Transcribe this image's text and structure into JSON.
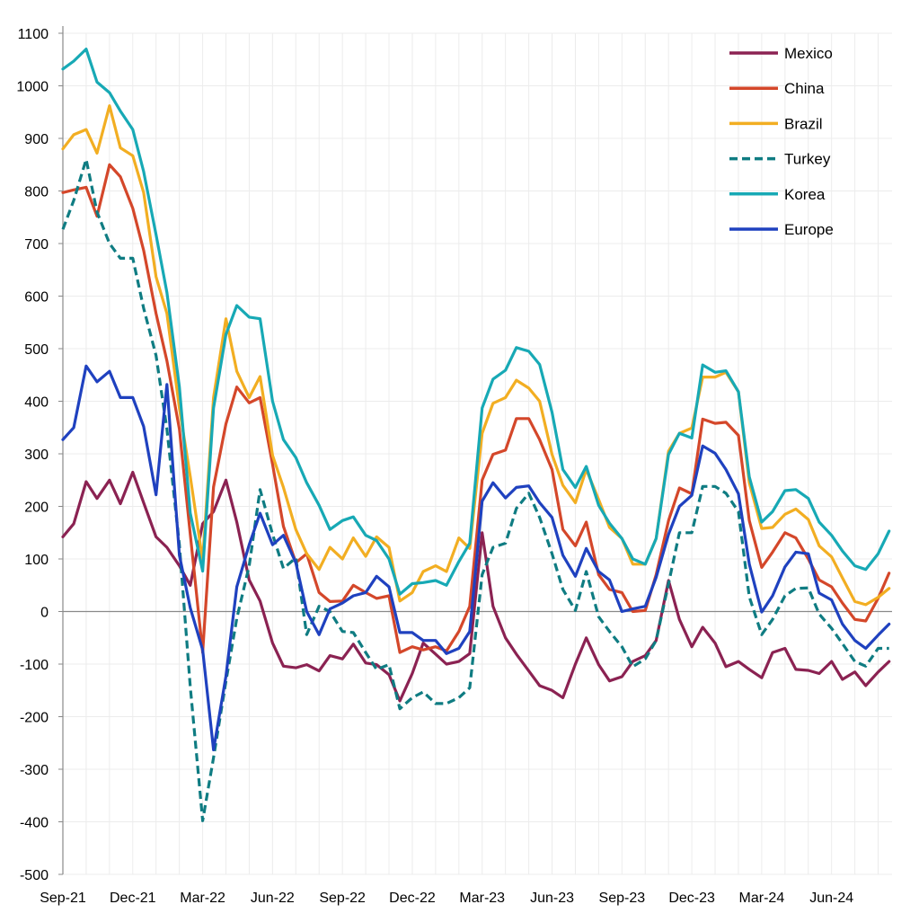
{
  "chart_data": {
    "type": "line",
    "title": "",
    "xlabel": "",
    "ylabel": "",
    "ylim": [
      -500,
      1100
    ],
    "yticks": [
      "-500",
      "-400",
      "-300",
      "-200",
      "-100",
      "0",
      "100",
      "200",
      "300",
      "400",
      "500",
      "600",
      "700",
      "800",
      "900",
      "1000",
      "1100"
    ],
    "xticks": [
      {
        "label": "Sep-21",
        "date": "2021-09-01"
      },
      {
        "label": "Dec-21",
        "date": "2021-12-01"
      },
      {
        "label": "Mar-22",
        "date": "2022-03-01"
      },
      {
        "label": "Jun-22",
        "date": "2022-06-01"
      },
      {
        "label": "Sep-22",
        "date": "2022-09-01"
      },
      {
        "label": "Dec-22",
        "date": "2022-12-01"
      },
      {
        "label": "Mar-23",
        "date": "2023-03-01"
      },
      {
        "label": "Jun-23",
        "date": "2023-06-01"
      },
      {
        "label": "Sep-23",
        "date": "2023-09-01"
      },
      {
        "label": "Dec-23",
        "date": "2023-12-01"
      },
      {
        "label": "Mar-24",
        "date": "2024-03-01"
      },
      {
        "label": "Jun-24",
        "date": "2024-06-01"
      }
    ],
    "grid": true,
    "legend_position": "top-right",
    "x": [
      "2021-09-01",
      "2021-09-15",
      "2021-10-01",
      "2021-10-15",
      "2021-11-01",
      "2021-11-15",
      "2021-12-01",
      "2021-12-15",
      "2022-01-01",
      "2022-01-15",
      "2022-02-01",
      "2022-02-15",
      "2022-03-01",
      "2022-03-15",
      "2022-04-01",
      "2022-04-15",
      "2022-05-01",
      "2022-05-15",
      "2022-06-01",
      "2022-06-15",
      "2022-07-01",
      "2022-07-15",
      "2022-08-01",
      "2022-08-15",
      "2022-09-01",
      "2022-09-15",
      "2022-10-01",
      "2022-10-15",
      "2022-11-01",
      "2022-11-15",
      "2022-12-01",
      "2022-12-15",
      "2023-01-01",
      "2023-01-15",
      "2023-02-01",
      "2023-02-15",
      "2023-03-01",
      "2023-03-15",
      "2023-04-01",
      "2023-04-15",
      "2023-05-01",
      "2023-05-15",
      "2023-06-01",
      "2023-06-15",
      "2023-07-01",
      "2023-07-15",
      "2023-08-01",
      "2023-08-15",
      "2023-09-01",
      "2023-09-15",
      "2023-10-01",
      "2023-10-15",
      "2023-11-01",
      "2023-11-15",
      "2023-12-01",
      "2023-12-15",
      "2024-01-01",
      "2024-01-15",
      "2024-02-01",
      "2024-02-15",
      "2024-03-01",
      "2024-03-15",
      "2024-04-01",
      "2024-04-15",
      "2024-05-01",
      "2024-05-15",
      "2024-06-01",
      "2024-06-15",
      "2024-07-01",
      "2024-07-15",
      "2024-08-01",
      "2024-08-15"
    ],
    "series": [
      {
        "name": "Mexico",
        "color": "#8B2252",
        "dashed": false,
        "values": [
          142,
          167,
          247,
          215,
          250,
          205,
          265,
          207,
          142,
          122,
          87,
          50,
          167,
          190,
          250,
          170,
          60,
          20,
          -60,
          -104,
          -107,
          -101,
          -113,
          -84,
          -90,
          -62,
          -98,
          -101,
          -120,
          -170,
          -118,
          -60,
          -81,
          -100,
          -95,
          -80,
          150,
          10,
          -50,
          -81,
          -113,
          -141,
          -150,
          -164,
          -100,
          -50,
          -101,
          -132,
          -124,
          -95,
          -84,
          -55,
          59,
          -15,
          -67,
          -30,
          -60,
          -105,
          -95,
          -110,
          -126,
          -78,
          -70,
          -110,
          -112,
          -118,
          -95,
          -129,
          -115,
          -141,
          -115,
          -95
        ]
      },
      {
        "name": "China",
        "color": "#D4472A",
        "dashed": false,
        "values": [
          797,
          802,
          807,
          752,
          850,
          827,
          767,
          687,
          567,
          477,
          347,
          147,
          -78,
          237,
          357,
          427,
          397,
          407,
          280,
          162,
          93,
          110,
          36,
          19,
          20,
          50,
          36,
          25,
          30,
          -78,
          -67,
          -73,
          -67,
          -75,
          -38,
          10,
          250,
          299,
          307,
          367,
          367,
          327,
          270,
          156,
          125,
          170,
          70,
          42,
          36,
          0,
          2,
          70,
          173,
          235,
          224,
          366,
          358,
          360,
          335,
          173,
          84,
          113,
          150,
          140,
          100,
          60,
          47,
          16,
          -15,
          -18,
          25,
          73
        ]
      },
      {
        "name": "Brazil",
        "color": "#F2AE22",
        "dashed": false,
        "values": [
          880,
          907,
          917,
          872,
          962,
          882,
          867,
          797,
          637,
          567,
          387,
          257,
          97,
          407,
          557,
          457,
          407,
          447,
          297,
          236,
          156,
          110,
          80,
          122,
          100,
          140,
          105,
          142,
          122,
          20,
          36,
          76,
          87,
          76,
          140,
          120,
          339,
          396,
          407,
          440,
          425,
          400,
          299,
          240,
          207,
          270,
          213,
          160,
          139,
          90,
          90,
          139,
          305,
          339,
          349,
          446,
          446,
          455,
          418,
          245,
          158,
          160,
          185,
          195,
          175,
          125,
          104,
          64,
          19,
          13,
          27,
          44
        ]
      },
      {
        "name": "Turkey",
        "color": "#0F7C82",
        "dashed": true,
        "values": [
          727,
          782,
          860,
          760,
          700,
          672,
          672,
          577,
          487,
          347,
          127,
          -143,
          -398,
          -278,
          -133,
          -13,
          87,
          232,
          147,
          82,
          102,
          -44,
          10,
          0,
          -38,
          -40,
          -78,
          -110,
          -101,
          -185,
          -164,
          -153,
          -175,
          -175,
          -164,
          -145,
          70,
          122,
          130,
          196,
          225,
          179,
          110,
          42,
          2,
          76,
          -10,
          -38,
          -67,
          -105,
          -90,
          -55,
          53,
          150,
          150,
          238,
          238,
          225,
          190,
          28,
          -44,
          -15,
          30,
          44,
          45,
          -5,
          -32,
          -61,
          -95,
          -104,
          -70,
          -70
        ]
      },
      {
        "name": "Korea",
        "color": "#17A9B5",
        "dashed": false,
        "values": [
          1032,
          1047,
          1070,
          1007,
          987,
          952,
          917,
          837,
          717,
          607,
          427,
          187,
          77,
          387,
          527,
          582,
          560,
          557,
          400,
          327,
          293,
          245,
          202,
          156,
          173,
          180,
          145,
          135,
          100,
          33,
          53,
          55,
          59,
          50,
          95,
          130,
          387,
          442,
          459,
          502,
          495,
          470,
          379,
          270,
          236,
          276,
          202,
          168,
          139,
          100,
          90,
          139,
          299,
          339,
          330,
          469,
          455,
          458,
          418,
          256,
          170,
          190,
          230,
          232,
          215,
          170,
          145,
          115,
          87,
          80,
          110,
          153
        ]
      },
      {
        "name": "Europe",
        "color": "#1F41BF",
        "dashed": false,
        "values": [
          327,
          350,
          467,
          437,
          457,
          407,
          407,
          352,
          222,
          432,
          107,
          7,
          -73,
          -263,
          -123,
          47,
          127,
          187,
          127,
          145,
          93,
          0,
          -44,
          5,
          16,
          30,
          36,
          67,
          47,
          -40,
          -40,
          -55,
          -55,
          -80,
          -70,
          -38,
          210,
          245,
          216,
          236,
          239,
          207,
          179,
          107,
          67,
          120,
          76,
          60,
          0,
          5,
          10,
          65,
          147,
          200,
          221,
          315,
          301,
          270,
          224,
          90,
          -1,
          30,
          85,
          113,
          110,
          35,
          22,
          -24,
          -55,
          -70,
          -45,
          -24
        ]
      }
    ]
  }
}
